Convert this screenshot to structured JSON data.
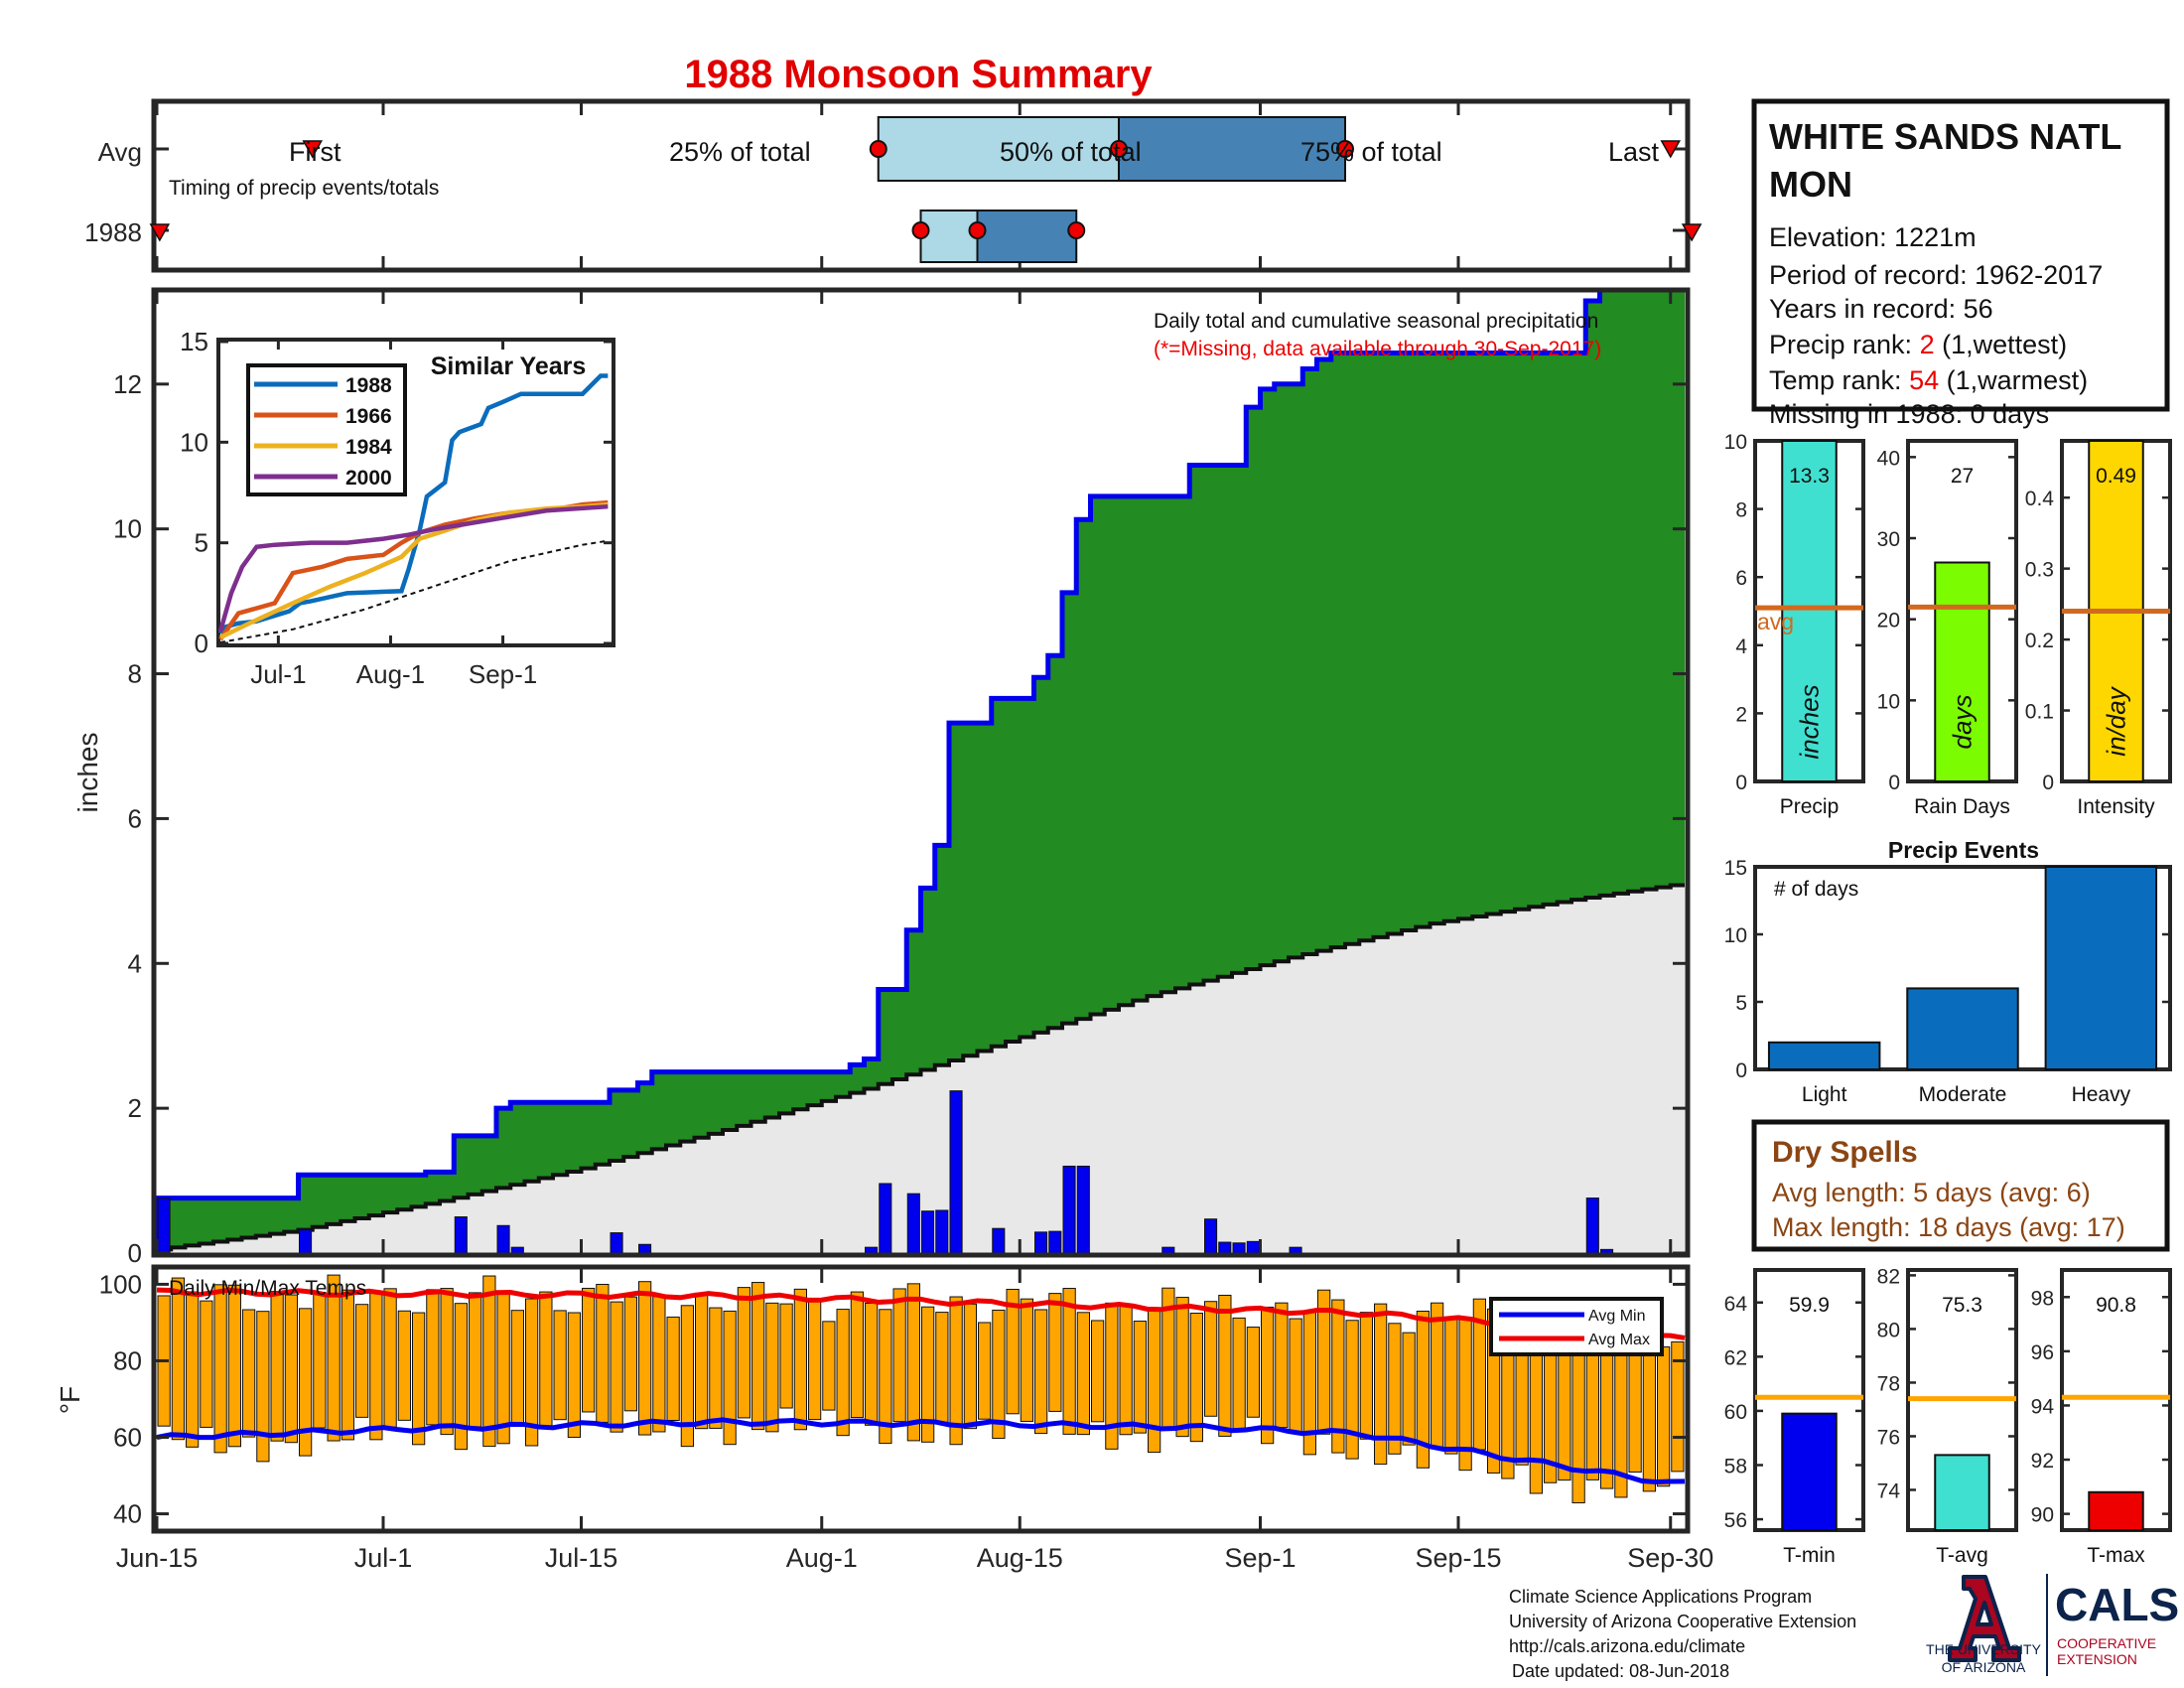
{
  "title": "1988 Monsoon Summary",
  "colors": {
    "title": "#e00000",
    "frame": "#262626",
    "obs_fill": "#228b22",
    "obs_line": "#0000ee",
    "avg_fill": "#e8e8e8",
    "daily_bar": "#0000ee",
    "temp_bar": "#ffa500",
    "avg_min": "#0000ee",
    "avg_max": "#ee0000",
    "timing_light": "#add8e6",
    "timing_dark": "#4682b4",
    "marker": "#ee0000",
    "precip_bar": "#40e0d0",
    "raindays_bar": "#7cfc00",
    "intensity_bar": "#ffd700",
    "avg_line": "#d2691e",
    "event_bar": "#0a6cbc",
    "dry_text": "#8b4513",
    "temp_avg_line": "#ffa500",
    "tmin_bar": "#0000ee",
    "tavg_bar": "#40e0d0",
    "tmax_bar": "#ee0000",
    "similar": [
      "#0a6cbc",
      "#d95319",
      "#edb120",
      "#7e2f8e"
    ]
  },
  "station": {
    "name_line1": "WHITE SANDS NATL",
    "name_line2": "MON",
    "elevation": "Elevation: 1221m",
    "period": "Period of record: 1962-2017",
    "years": "Years in record: 56",
    "precip_rank_label": "Precip rank: ",
    "precip_rank_value": "2",
    "precip_rank_note": " (1,wettest)",
    "temp_rank_label": "Temp rank: ",
    "temp_rank_value": "54",
    "temp_rank_note": " (1,warmest)",
    "missing": "Missing in 1988: 0 days"
  },
  "timing": {
    "row_avg": "Avg",
    "row_year": "1988",
    "first": "First",
    "last": "Last",
    "pct25": "25% of total",
    "pct50": "50% of total",
    "pct75": "75% of total",
    "caption": "Timing of precip events/totals",
    "avg_first_day": 11,
    "avg_last_day": 107,
    "avg_q25_day": 51,
    "avg_q50_day": 68,
    "avg_q75_day": 84,
    "year_first_day": 0,
    "year_last_day": 109,
    "year_q25_day": 54,
    "year_q50_day": 58,
    "year_q75_day": 65
  },
  "main_chart": {
    "ylabel": "inches",
    "note1": "Daily total and cumulative seasonal precipitation",
    "note2": "(*=Missing, data available through 30-Sep-2017)",
    "yticks": [
      "0",
      "2",
      "4",
      "6",
      "8",
      "10",
      "12"
    ],
    "ylim": [
      0,
      13.3
    ],
    "xticks": [
      "Jun-15",
      "Jul-1",
      "Jul-15",
      "Aug-1",
      "Aug-15",
      "Sep-1",
      "Sep-15",
      "Sep-30"
    ],
    "xtick_days": [
      0,
      16,
      30,
      47,
      61,
      78,
      92,
      107
    ],
    "days_total": 108
  },
  "chart_data": [
    {
      "type": "area",
      "title": "Daily total and cumulative seasonal precipitation",
      "ylabel": "inches",
      "ylim": [
        0,
        13.3
      ],
      "x_start": "Jun-15",
      "x_end": "Sep-30",
      "series": [
        {
          "name": "",
          "kind": "cumulative_1988",
          "steps": [
            [
              0,
              0.76
            ],
            [
              10,
              1.08
            ],
            [
              19,
              1.12
            ],
            [
              21,
              1.62
            ],
            [
              24,
              2.0
            ],
            [
              25,
              2.08
            ],
            [
              32,
              2.25
            ],
            [
              34,
              2.35
            ],
            [
              35,
              2.5
            ],
            [
              49,
              2.6
            ],
            [
              50,
              2.68
            ],
            [
              51,
              3.64
            ],
            [
              53,
              4.46
            ],
            [
              54,
              5.04
            ],
            [
              55,
              5.63
            ],
            [
              56,
              7.32
            ],
            [
              59,
              7.66
            ],
            [
              62,
              7.95
            ],
            [
              63,
              8.25
            ],
            [
              64,
              9.12
            ],
            [
              65,
              10.13
            ],
            [
              66,
              10.45
            ],
            [
              72,
              10.45
            ],
            [
              73,
              10.88
            ],
            [
              74,
              10.88
            ],
            [
              77,
              11.68
            ],
            [
              78,
              11.93
            ],
            [
              79,
              12.0
            ],
            [
              80,
              12.0
            ],
            [
              81,
              12.21
            ],
            [
              82,
              12.34
            ],
            [
              83,
              12.43
            ],
            [
              90,
              12.43
            ],
            [
              101,
              13.15
            ],
            [
              102,
              13.3
            ],
            [
              107,
              13.3
            ]
          ]
        },
        {
          "name": "",
          "kind": "cumulative_average",
          "x": [
            0,
            10,
            20,
            30,
            40,
            50,
            60,
            70,
            80,
            90,
            100,
            107
          ],
          "values": [
            0.05,
            0.32,
            0.72,
            1.17,
            1.7,
            2.27,
            2.92,
            3.55,
            4.08,
            4.55,
            4.88,
            5.08
          ]
        },
        {
          "name": "",
          "kind": "daily_1988",
          "x": [
            0,
            10,
            21,
            24,
            25,
            32,
            34,
            50,
            51,
            53,
            54,
            55,
            56,
            59,
            62,
            63,
            64,
            65,
            71,
            74,
            75,
            76,
            77,
            80,
            101,
            102
          ],
          "values": [
            0.76,
            0.32,
            0.5,
            0.38,
            0.08,
            0.28,
            0.12,
            0.08,
            0.96,
            0.82,
            0.58,
            0.59,
            2.24,
            0.34,
            0.29,
            0.3,
            1.2,
            1.2,
            0.08,
            0.47,
            0.15,
            0.14,
            0.16,
            0.08,
            0.76,
            0.05
          ]
        }
      ]
    },
    {
      "type": "line",
      "title": "Similar Years",
      "xticks": [
        "Jul-1",
        "Aug-1",
        "Sep-1"
      ],
      "xtick_days": [
        16,
        47,
        78
      ],
      "yticks": [
        "0",
        "5",
        "10",
        "15"
      ],
      "ylim": [
        0,
        15
      ],
      "series": [
        {
          "name": "1988",
          "x": [
            0,
            1,
            5,
            10,
            19,
            22,
            25,
            35,
            50,
            52,
            55,
            57,
            62,
            64,
            66,
            72,
            74,
            78,
            83,
            100,
            105,
            107
          ],
          "values": [
            0.5,
            0.8,
            1.0,
            1.1,
            1.6,
            2.0,
            2.1,
            2.5,
            2.6,
            3.7,
            5.6,
            7.3,
            8.0,
            10.1,
            10.5,
            10.9,
            11.7,
            12.0,
            12.4,
            12.4,
            13.3,
            13.3
          ]
        },
        {
          "name": "1966",
          "x": [
            0,
            5,
            15,
            20,
            28,
            35,
            45,
            50,
            55,
            62,
            70,
            80,
            90,
            100,
            107
          ],
          "values": [
            0.2,
            1.5,
            2.0,
            3.5,
            3.8,
            4.2,
            4.4,
            5.0,
            5.5,
            5.9,
            6.2,
            6.5,
            6.6,
            6.9,
            7.0
          ]
        },
        {
          "name": "1984",
          "x": [
            0,
            8,
            20,
            30,
            40,
            50,
            55,
            62,
            70,
            80,
            90,
            100,
            107
          ],
          "values": [
            0.3,
            1.0,
            2.0,
            2.8,
            3.5,
            4.3,
            5.2,
            5.6,
            6.1,
            6.5,
            6.7,
            6.8,
            6.9
          ]
        },
        {
          "name": "2000",
          "x": [
            0,
            3,
            6,
            10,
            15,
            25,
            35,
            45,
            52,
            60,
            70,
            80,
            90,
            107
          ],
          "values": [
            0.6,
            2.5,
            3.8,
            4.8,
            4.9,
            5.0,
            5.0,
            5.2,
            5.4,
            5.7,
            6.0,
            6.3,
            6.6,
            6.8
          ]
        },
        {
          "name": "",
          "kind": "average",
          "x": [
            0,
            20,
            40,
            60,
            80,
            100,
            107
          ],
          "values": [
            0.05,
            0.7,
            1.7,
            2.9,
            4.1,
            4.9,
            5.1
          ]
        }
      ]
    },
    {
      "type": "bar",
      "title": "Daily Min/Max Temps",
      "ylabel": "°F",
      "ylim": [
        36,
        104
      ],
      "yticks": [
        "40",
        "60",
        "80",
        "100"
      ],
      "series": [
        {
          "name": "Avg Min",
          "x": [
            0,
            20,
            40,
            60,
            75,
            85,
            95,
            107
          ],
          "values": [
            60,
            62.5,
            64,
            63.5,
            62.5,
            61,
            55,
            48
          ]
        },
        {
          "name": "Avg Max",
          "x": [
            0,
            20,
            40,
            60,
            75,
            85,
            95,
            107
          ],
          "values": [
            98,
            97.5,
            97,
            95,
            93.5,
            92.5,
            90,
            86
          ]
        }
      ],
      "min_max_wave": {
        "max_base": [
          97,
          97,
          96,
          95,
          94,
          93,
          91,
          88
        ],
        "min_base": [
          58,
          61,
          63,
          62,
          61,
          58,
          50,
          46
        ]
      }
    },
    {
      "type": "bar",
      "title": "Precip",
      "yticks": [
        "0",
        "2",
        "4",
        "6",
        "8",
        "10"
      ],
      "ylim": [
        0,
        10
      ],
      "value": 13.3,
      "value_label": "13.3",
      "avg": 5.1,
      "avg_label": "avg",
      "bar_label": "inches",
      "xlabel": "Precip"
    },
    {
      "type": "bar",
      "title": "Rain Days",
      "yticks": [
        "0",
        "10",
        "20",
        "30",
        "40"
      ],
      "ylim": [
        0,
        42
      ],
      "value": 27,
      "value_label": "27",
      "avg": 21.5,
      "bar_label": "days",
      "xlabel": "Rain Days"
    },
    {
      "type": "bar",
      "title": "Intensity",
      "yticks": [
        "0",
        "0.1",
        "0.2",
        "0.3",
        "0.4"
      ],
      "ylim": [
        0,
        0.48
      ],
      "value": 0.49,
      "value_label": "0.49",
      "avg": 0.24,
      "bar_label": "in/day",
      "xlabel": "Intensity"
    },
    {
      "type": "bar",
      "title": "Precip Events",
      "ylabel_inside": "# of days",
      "categories": [
        "Light",
        "Moderate",
        "Heavy"
      ],
      "values": [
        2,
        6,
        15
      ],
      "yticks": [
        "0",
        "5",
        "10",
        "15"
      ],
      "ylim": [
        0,
        15
      ]
    },
    {
      "type": "bar",
      "title": "T-min",
      "yticks": [
        "56",
        "58",
        "60",
        "62",
        "64"
      ],
      "ylim": [
        55.6,
        65.2
      ],
      "value": 59.9,
      "value_label": "59.9",
      "avg": 60.5,
      "xlabel": "T-min"
    },
    {
      "type": "bar",
      "title": "T-avg",
      "yticks": [
        "74",
        "76",
        "78",
        "80",
        "82"
      ],
      "ylim": [
        72.5,
        82.2
      ],
      "value": 75.3,
      "value_label": "75.3",
      "avg": 77.4,
      "xlabel": "T-avg"
    },
    {
      "type": "bar",
      "title": "T-max",
      "yticks": [
        "90",
        "92",
        "94",
        "96",
        "98"
      ],
      "ylim": [
        89.4,
        99
      ],
      "value": 90.8,
      "value_label": "90.8",
      "avg": 94.3,
      "xlabel": "T-max"
    }
  ],
  "temp_chart": {
    "title": "Daily Min/Max Temps",
    "legend_min": "Avg Min",
    "legend_max": "Avg Max"
  },
  "dry_spells": {
    "title": "Dry Spells",
    "avg_length": "Avg length: 5 days (avg: 6)",
    "max_length": "Max length: 18 days (avg: 17)"
  },
  "footer": {
    "line1": "Climate Science Applications Program",
    "line2": "University of Arizona Cooperative Extension",
    "line3": "http://cals.arizona.edu/climate",
    "line4": "Date updated: 08-Jun-2018"
  },
  "logos": {
    "ua_line1": "THE UNIVERSITY",
    "ua_line2": "OF ARIZONA",
    "cals": "CALS",
    "cals_sub1": "COOPERATIVE",
    "cals_sub2": "EXTENSION"
  }
}
